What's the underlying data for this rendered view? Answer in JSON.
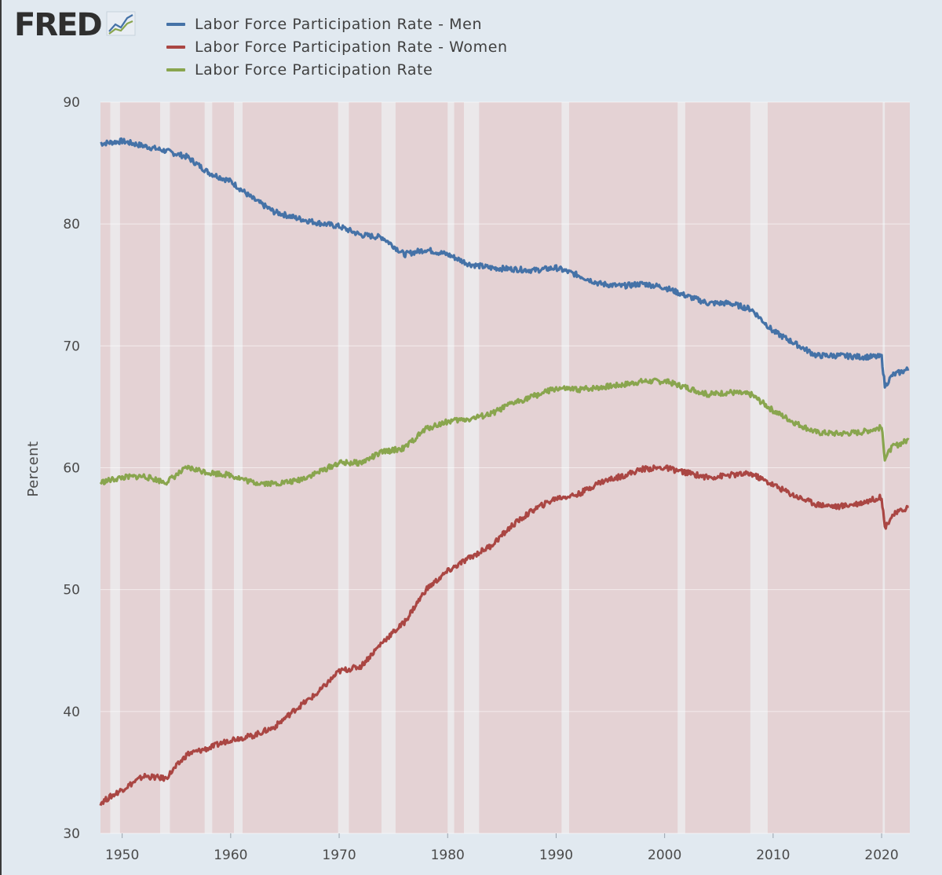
{
  "logo": {
    "text": "FRED",
    "icon": "rising-lines-chart-icon"
  },
  "chart_data": {
    "type": "line",
    "ylabel": "Percent",
    "ylim": [
      30,
      90
    ],
    "xlim": [
      1948.0,
      2022.6
    ],
    "yticks": [
      30,
      40,
      50,
      60,
      70,
      80,
      90
    ],
    "xticks": [
      1950,
      1960,
      1970,
      1980,
      1990,
      2000,
      2010,
      2020
    ],
    "grid": "horizontal",
    "legend_placement": "top",
    "recession_bands": [
      [
        1948.9,
        1949.8
      ],
      [
        1953.5,
        1954.4
      ],
      [
        1957.6,
        1958.3
      ],
      [
        1960.3,
        1961.1
      ],
      [
        1969.9,
        1970.9
      ],
      [
        1973.9,
        1975.2
      ],
      [
        1980.0,
        1980.6
      ],
      [
        1981.5,
        1982.9
      ],
      [
        1990.5,
        1991.2
      ],
      [
        2001.2,
        2001.9
      ],
      [
        2007.9,
        2009.5
      ],
      [
        2020.1,
        2020.3
      ]
    ],
    "x": [
      1948,
      1950,
      1952,
      1954,
      1956,
      1958,
      1960,
      1962,
      1964,
      1966,
      1968,
      1970,
      1972,
      1974,
      1976,
      1978,
      1980,
      1982,
      1984,
      1986,
      1988,
      1990,
      1992,
      1994,
      1996,
      1998,
      2000,
      2002,
      2004,
      2006,
      2008,
      2010,
      2012,
      2014,
      2016,
      2018,
      2020.0,
      2020.3,
      2021,
      2022.5
    ],
    "series": [
      {
        "name": "Labor Force Participation Rate - Men",
        "color": "#4572a7",
        "values": [
          86.6,
          86.8,
          86.4,
          86.0,
          85.5,
          84.2,
          83.5,
          82.1,
          81.0,
          80.5,
          80.1,
          79.8,
          79.1,
          78.9,
          77.5,
          77.9,
          77.5,
          76.7,
          76.4,
          76.3,
          76.2,
          76.4,
          75.8,
          75.1,
          74.9,
          75.1,
          74.8,
          74.1,
          73.5,
          73.5,
          73.0,
          71.2,
          70.2,
          69.2,
          69.2,
          69.1,
          69.1,
          66.7,
          67.6,
          68.1
        ]
      },
      {
        "name": "Labor Force Participation Rate - Women",
        "color": "#aa4643",
        "values": [
          32.5,
          33.6,
          34.7,
          34.5,
          36.5,
          37.0,
          37.7,
          38.0,
          38.7,
          40.2,
          41.5,
          43.3,
          43.7,
          45.7,
          47.3,
          50.0,
          51.5,
          52.6,
          53.6,
          55.3,
          56.6,
          57.5,
          57.8,
          58.8,
          59.3,
          59.9,
          60.0,
          59.6,
          59.2,
          59.4,
          59.5,
          58.6,
          57.7,
          57.0,
          56.8,
          57.1,
          57.6,
          55.1,
          56.1,
          56.8
        ]
      },
      {
        "name": "Labor Force Participation Rate",
        "color": "#89a54e",
        "values": [
          58.8,
          59.2,
          59.3,
          58.8,
          60.0,
          59.6,
          59.4,
          58.8,
          58.7,
          58.9,
          59.6,
          60.4,
          60.4,
          61.3,
          61.6,
          63.2,
          63.8,
          64.0,
          64.4,
          65.3,
          65.9,
          66.5,
          66.4,
          66.6,
          66.8,
          67.1,
          67.1,
          66.6,
          66.0,
          66.2,
          66.0,
          64.7,
          63.7,
          62.9,
          62.8,
          62.9,
          63.3,
          60.8,
          61.7,
          62.3
        ]
      }
    ]
  }
}
